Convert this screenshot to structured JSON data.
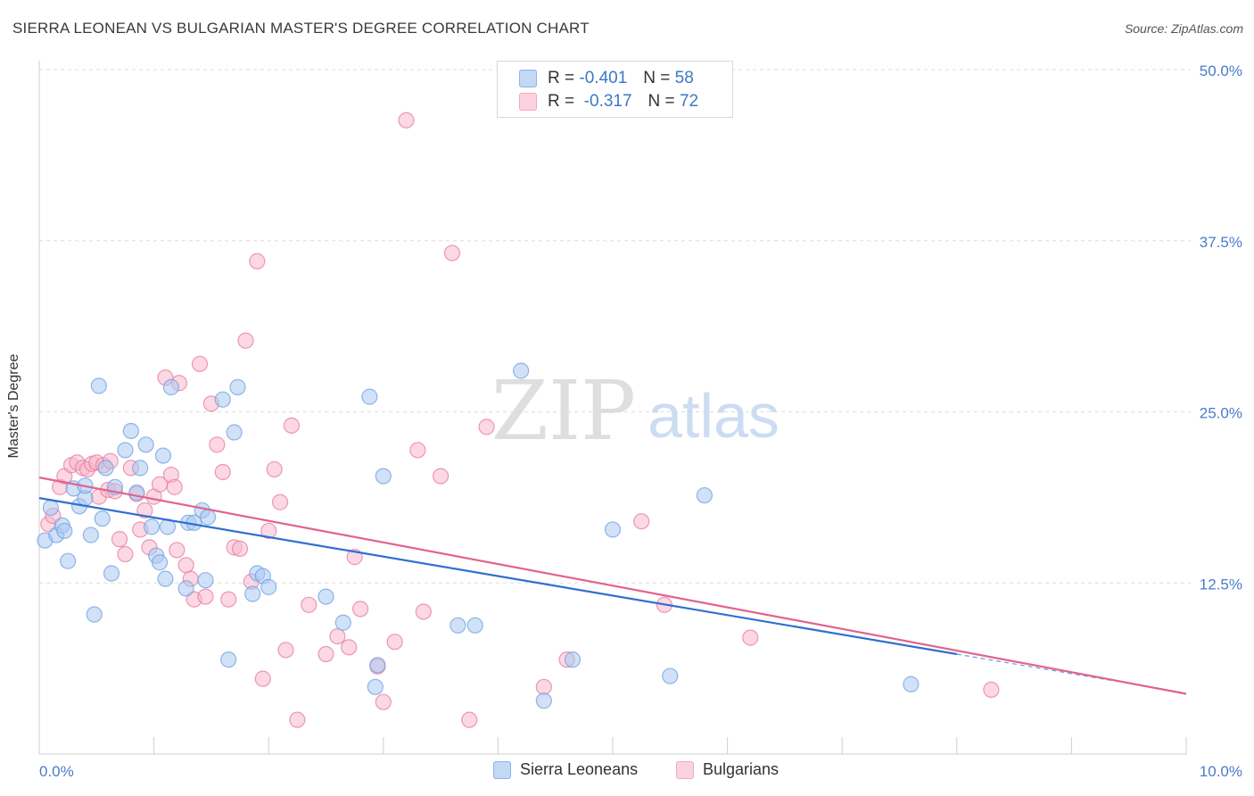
{
  "title": "SIERRA LEONEAN VS BULGARIAN MASTER'S DEGREE CORRELATION CHART",
  "source": "Source: ZipAtlas.com",
  "watermark": {
    "zip": "ZIP",
    "atlas": "atlas"
  },
  "legend": {
    "rows": [
      {
        "r_label": "R =",
        "r_value": "-0.401",
        "n_label": "N =",
        "n_value": "58",
        "color": "#a9c8f2"
      },
      {
        "r_label": "R =",
        "r_value": "-0.317",
        "n_label": "N =",
        "n_value": "72",
        "color": "#f7b8cc"
      }
    ]
  },
  "bottom_legend": {
    "series1": "Sierra Leoneans",
    "series2": "Bulgarians"
  },
  "chart_data": {
    "type": "scatter",
    "title": "SIERRA LEONEAN VS BULGARIAN MASTER'S DEGREE CORRELATION CHART",
    "xlabel": "",
    "ylabel": "Master's Degree",
    "xlim": [
      0,
      10
    ],
    "ylim": [
      0,
      50
    ],
    "x_tick_labels": [
      "0.0%",
      "10.0%"
    ],
    "y_ticks": [
      12.5,
      25.0,
      37.5,
      50.0
    ],
    "y_tick_labels": [
      "12.5%",
      "25.0%",
      "37.5%",
      "50.0%"
    ],
    "grid": true,
    "legend_placement": "top-center",
    "series": [
      {
        "name": "Sierra Leoneans",
        "color": "#6fa0e0",
        "fill": "#a9c8f2",
        "trend": {
          "x": [
            0,
            8.0
          ],
          "y": [
            18.7,
            7.3
          ]
        },
        "points": [
          [
            0.05,
            15.6
          ],
          [
            0.1,
            18.0
          ],
          [
            0.15,
            16.0
          ],
          [
            0.2,
            16.7
          ],
          [
            0.22,
            16.3
          ],
          [
            0.25,
            14.1
          ],
          [
            0.3,
            19.4
          ],
          [
            0.35,
            18.1
          ],
          [
            0.4,
            18.7
          ],
          [
            0.4,
            19.6
          ],
          [
            0.45,
            16.0
          ],
          [
            0.48,
            10.2
          ],
          [
            0.52,
            26.9
          ],
          [
            0.55,
            17.2
          ],
          [
            0.58,
            20.9
          ],
          [
            0.63,
            13.2
          ],
          [
            0.66,
            19.5
          ],
          [
            0.75,
            22.2
          ],
          [
            0.8,
            23.6
          ],
          [
            0.85,
            19.1
          ],
          [
            0.88,
            20.9
          ],
          [
            0.93,
            22.6
          ],
          [
            0.98,
            16.6
          ],
          [
            1.02,
            14.5
          ],
          [
            1.05,
            14.0
          ],
          [
            1.08,
            21.8
          ],
          [
            1.1,
            12.8
          ],
          [
            1.12,
            16.6
          ],
          [
            1.15,
            26.8
          ],
          [
            1.28,
            12.1
          ],
          [
            1.3,
            16.9
          ],
          [
            1.35,
            16.9
          ],
          [
            1.42,
            17.8
          ],
          [
            1.45,
            12.7
          ],
          [
            1.47,
            17.3
          ],
          [
            1.6,
            25.9
          ],
          [
            1.65,
            6.9
          ],
          [
            1.7,
            23.5
          ],
          [
            1.73,
            26.8
          ],
          [
            1.86,
            11.7
          ],
          [
            1.9,
            13.2
          ],
          [
            1.95,
            13.0
          ],
          [
            2.0,
            12.2
          ],
          [
            2.5,
            11.5
          ],
          [
            2.65,
            9.6
          ],
          [
            2.88,
            26.1
          ],
          [
            2.93,
            4.9
          ],
          [
            2.95,
            6.5
          ],
          [
            3.0,
            20.3
          ],
          [
            3.65,
            9.4
          ],
          [
            3.8,
            9.4
          ],
          [
            4.2,
            28.0
          ],
          [
            4.4,
            3.9
          ],
          [
            4.65,
            6.9
          ],
          [
            5.0,
            16.4
          ],
          [
            5.5,
            5.7
          ],
          [
            5.8,
            18.9
          ],
          [
            7.6,
            5.1
          ]
        ]
      },
      {
        "name": "Bulgarians",
        "color": "#e8799e",
        "fill": "#f7b8cc",
        "trend": {
          "x": [
            0,
            10.0
          ],
          "y": [
            20.2,
            4.4
          ]
        },
        "points": [
          [
            0.08,
            16.8
          ],
          [
            0.12,
            17.4
          ],
          [
            0.18,
            19.5
          ],
          [
            0.22,
            20.3
          ],
          [
            0.28,
            21.1
          ],
          [
            0.33,
            21.3
          ],
          [
            0.38,
            20.9
          ],
          [
            0.42,
            20.8
          ],
          [
            0.46,
            21.2
          ],
          [
            0.5,
            21.3
          ],
          [
            0.52,
            18.8
          ],
          [
            0.56,
            21.1
          ],
          [
            0.6,
            19.3
          ],
          [
            0.62,
            21.4
          ],
          [
            0.66,
            19.2
          ],
          [
            0.7,
            15.7
          ],
          [
            0.75,
            14.6
          ],
          [
            0.8,
            20.9
          ],
          [
            0.85,
            19.0
          ],
          [
            0.88,
            16.4
          ],
          [
            0.92,
            17.8
          ],
          [
            0.96,
            15.1
          ],
          [
            1.0,
            18.8
          ],
          [
            1.05,
            19.7
          ],
          [
            1.1,
            27.5
          ],
          [
            1.15,
            20.4
          ],
          [
            1.18,
            19.5
          ],
          [
            1.2,
            14.9
          ],
          [
            1.22,
            27.1
          ],
          [
            1.28,
            13.8
          ],
          [
            1.32,
            12.8
          ],
          [
            1.35,
            11.3
          ],
          [
            1.4,
            28.5
          ],
          [
            1.45,
            11.5
          ],
          [
            1.5,
            25.6
          ],
          [
            1.55,
            22.6
          ],
          [
            1.6,
            20.6
          ],
          [
            1.65,
            11.3
          ],
          [
            1.7,
            15.1
          ],
          [
            1.75,
            15.0
          ],
          [
            1.8,
            30.2
          ],
          [
            1.85,
            12.6
          ],
          [
            1.9,
            36.0
          ],
          [
            1.95,
            5.5
          ],
          [
            2.0,
            16.3
          ],
          [
            2.05,
            20.8
          ],
          [
            2.1,
            18.4
          ],
          [
            2.15,
            7.6
          ],
          [
            2.2,
            24.0
          ],
          [
            2.25,
            2.5
          ],
          [
            2.35,
            10.9
          ],
          [
            2.5,
            7.3
          ],
          [
            2.6,
            8.6
          ],
          [
            2.7,
            7.8
          ],
          [
            2.75,
            14.4
          ],
          [
            2.8,
            10.6
          ],
          [
            2.95,
            6.4
          ],
          [
            3.0,
            3.8
          ],
          [
            3.1,
            8.2
          ],
          [
            3.2,
            46.3
          ],
          [
            3.3,
            22.2
          ],
          [
            3.35,
            10.4
          ],
          [
            3.5,
            20.3
          ],
          [
            3.6,
            36.6
          ],
          [
            3.75,
            2.5
          ],
          [
            3.9,
            23.9
          ],
          [
            4.4,
            4.9
          ],
          [
            4.6,
            6.9
          ],
          [
            5.25,
            17.0
          ],
          [
            5.45,
            10.9
          ],
          [
            6.2,
            8.5
          ],
          [
            8.3,
            4.7
          ]
        ]
      }
    ]
  }
}
